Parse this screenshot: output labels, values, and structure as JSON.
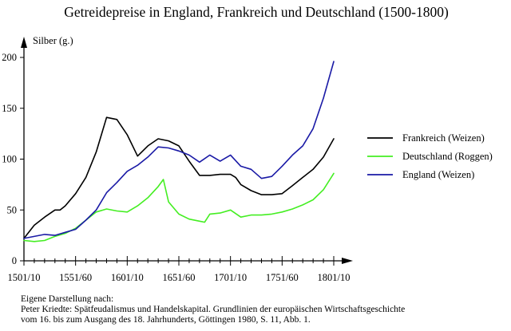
{
  "chart_data": {
    "type": "line",
    "title": "Getreidepreise in England, Frankreich und Deutschland (1500-1800)",
    "ylabel": "Silber (g.)",
    "xlabel": "",
    "xlim": [
      1500,
      1800
    ],
    "ylim": [
      0,
      200
    ],
    "x_ticks": [
      1500,
      1550,
      1600,
      1650,
      1700,
      1750,
      1800
    ],
    "x_tick_labels": [
      "1501/10",
      "1551/60",
      "1601/10",
      "1651/60",
      "1701/10",
      "1751/60",
      "1801/10"
    ],
    "y_ticks": [
      0,
      50,
      100,
      150,
      200
    ],
    "y_tick_labels": [
      "0",
      "50",
      "100",
      "150",
      "200"
    ],
    "grid": false,
    "legend_position": "right",
    "series": [
      {
        "name": "Frankreich (Weizen)",
        "color": "#000000",
        "x": [
          1500,
          1510,
          1520,
          1530,
          1535,
          1540,
          1550,
          1560,
          1570,
          1580,
          1590,
          1600,
          1610,
          1620,
          1630,
          1640,
          1650,
          1660,
          1670,
          1680,
          1690,
          1700,
          1705,
          1710,
          1720,
          1730,
          1740,
          1750,
          1760,
          1770,
          1780,
          1790,
          1800
        ],
        "y": [
          22,
          35,
          43,
          50,
          50,
          54,
          66,
          82,
          107,
          141,
          139,
          124,
          103,
          113,
          120,
          118,
          113,
          98,
          84,
          84,
          85,
          85,
          82,
          75,
          69,
          65,
          65,
          66,
          74,
          82,
          90,
          102,
          120
        ]
      },
      {
        "name": "Deutschland (Roggen)",
        "color": "#44ee22",
        "x": [
          1500,
          1510,
          1520,
          1530,
          1540,
          1550,
          1560,
          1570,
          1580,
          1590,
          1600,
          1610,
          1620,
          1630,
          1635,
          1640,
          1650,
          1660,
          1670,
          1675,
          1680,
          1690,
          1700,
          1710,
          1720,
          1730,
          1740,
          1750,
          1760,
          1770,
          1780,
          1790,
          1800
        ],
        "y": [
          20,
          19,
          20,
          24,
          27,
          32,
          40,
          48,
          51,
          49,
          48,
          54,
          62,
          73,
          80,
          58,
          46,
          41,
          39,
          38,
          46,
          47,
          50,
          43,
          45,
          45,
          46,
          48,
          51,
          55,
          60,
          70,
          86
        ]
      },
      {
        "name": "England (Weizen)",
        "color": "#1a1aa6",
        "x": [
          1500,
          1510,
          1520,
          1530,
          1540,
          1550,
          1560,
          1570,
          1580,
          1590,
          1600,
          1610,
          1620,
          1630,
          1640,
          1650,
          1660,
          1670,
          1680,
          1690,
          1700,
          1710,
          1720,
          1730,
          1740,
          1750,
          1760,
          1770,
          1780,
          1790,
          1800
        ],
        "y": [
          22,
          24,
          26,
          25,
          28,
          31,
          40,
          50,
          67,
          77,
          88,
          94,
          102,
          112,
          111,
          108,
          104,
          97,
          104,
          98,
          104,
          93,
          90,
          81,
          83,
          93,
          104,
          113,
          130,
          160,
          196
        ]
      }
    ]
  },
  "source": {
    "line1": "Eigene Darstellung nach:",
    "line2": "Peter Kriedte: Spätfeudalismus und Handelskapital. Grundlinien der europäischen Wirtschaftsgeschichte",
    "line3": "vom 16. bis zum Ausgang des 18. Jahrhunderts, Göttingen 1980, S. 11, Abb. 1."
  }
}
